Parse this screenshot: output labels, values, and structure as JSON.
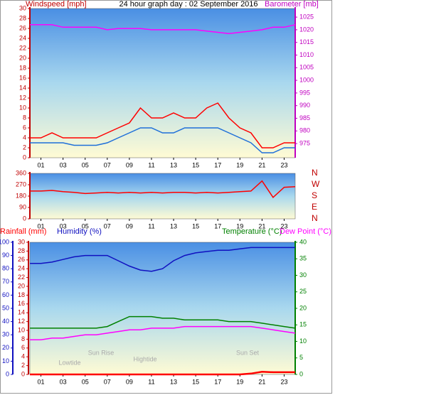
{
  "chart_data": [
    {
      "type": "line",
      "title": "24 hour graph day : 02 September 2016",
      "y_label": "Windspeed [mph]",
      "y2_label": "Barometer [mb]",
      "x": [
        0,
        1,
        2,
        3,
        4,
        5,
        6,
        7,
        8,
        9,
        10,
        11,
        12,
        13,
        14,
        15,
        16,
        17,
        18,
        19,
        20,
        21,
        22,
        23,
        24
      ],
      "xlim": [
        0,
        24
      ],
      "xticks": [
        {
          "value": 1,
          "label": "01"
        },
        {
          "value": 3,
          "label": "03"
        },
        {
          "value": 5,
          "label": "05"
        },
        {
          "value": 7,
          "label": "07"
        },
        {
          "value": 9,
          "label": "09"
        },
        {
          "value": 11,
          "label": "11"
        },
        {
          "value": 13,
          "label": "13"
        },
        {
          "value": 15,
          "label": "15"
        },
        {
          "value": 17,
          "label": "17"
        },
        {
          "value": 19,
          "label": "19"
        },
        {
          "value": 21,
          "label": "21"
        },
        {
          "value": 23,
          "label": "23"
        }
      ],
      "ylim": [
        0,
        30
      ],
      "yticks": [
        0,
        2,
        4,
        6,
        8,
        10,
        12,
        14,
        16,
        18,
        20,
        22,
        24,
        26,
        28,
        30
      ],
      "y2lim": [
        969.4,
        1028.4
      ],
      "y2ticks": [
        975,
        980,
        985,
        990,
        995,
        1000,
        1005,
        1010,
        1015,
        1020,
        1025
      ],
      "series": [
        {
          "color": "#ff0000",
          "values": [
            4,
            4,
            5,
            4,
            4,
            4,
            4,
            5,
            6,
            7,
            10,
            8,
            8,
            9,
            8,
            8,
            10,
            11,
            8,
            6,
            5,
            2,
            2,
            3,
            3
          ]
        },
        {
          "color": "#1e6fd9",
          "values": [
            3,
            3,
            3,
            3,
            2.5,
            2.5,
            2.5,
            3,
            4,
            5,
            6,
            6,
            5,
            5,
            6,
            6,
            6,
            6,
            5,
            4,
            3,
            1,
            1,
            2,
            2
          ]
        },
        {
          "color": "#ff00ff",
          "axis": "y2",
          "values": [
            1022,
            1022,
            1022,
            1021,
            1021,
            1021,
            1021,
            1020,
            1020.5,
            1020.5,
            1020.5,
            1020,
            1020,
            1020,
            1020,
            1020,
            1019.5,
            1019,
            1018.5,
            1019,
            1019.5,
            1020,
            1021,
            1021,
            1022
          ]
        }
      ]
    },
    {
      "type": "line",
      "x": [
        0,
        1,
        2,
        3,
        4,
        5,
        6,
        7,
        8,
        9,
        10,
        11,
        12,
        13,
        14,
        15,
        16,
        17,
        18,
        19,
        20,
        21,
        22,
        23,
        24
      ],
      "xlim": [
        0,
        24
      ],
      "xticks": [
        {
          "value": 1,
          "label": "01"
        },
        {
          "value": 3,
          "label": "03"
        },
        {
          "value": 5,
          "label": "05"
        },
        {
          "value": 7,
          "label": "07"
        },
        {
          "value": 9,
          "label": "09"
        },
        {
          "value": 11,
          "label": "11"
        },
        {
          "value": 13,
          "label": "13"
        },
        {
          "value": 15,
          "label": "15"
        },
        {
          "value": 17,
          "label": "17"
        },
        {
          "value": 19,
          "label": "19"
        },
        {
          "value": 21,
          "label": "21"
        },
        {
          "value": 23,
          "label": "23"
        }
      ],
      "ylim": [
        0,
        360
      ],
      "yticks": [
        0,
        90,
        180,
        270,
        360
      ],
      "y2lim": [
        0,
        360
      ],
      "y2ticks": [
        {
          "value": 360,
          "label": "N"
        },
        {
          "value": 270,
          "label": "W"
        },
        {
          "value": 180,
          "label": "S"
        },
        {
          "value": 90,
          "label": "E"
        },
        {
          "value": 0,
          "label": "N"
        }
      ],
      "series": [
        {
          "color": "#ff0000",
          "values": [
            220,
            220,
            225,
            215,
            210,
            200,
            205,
            210,
            205,
            210,
            205,
            210,
            205,
            210,
            210,
            205,
            210,
            205,
            210,
            215,
            220,
            300,
            170,
            250,
            255
          ]
        }
      ]
    },
    {
      "type": "line",
      "x": [
        0,
        1,
        2,
        3,
        4,
        5,
        6,
        7,
        8,
        9,
        10,
        11,
        12,
        13,
        14,
        15,
        16,
        17,
        18,
        19,
        20,
        21,
        22,
        23,
        24
      ],
      "xlim": [
        0,
        24
      ],
      "xticks": [
        {
          "value": 1,
          "label": "01"
        },
        {
          "value": 3,
          "label": "03"
        },
        {
          "value": 5,
          "label": "05"
        },
        {
          "value": 7,
          "label": "07"
        },
        {
          "value": 9,
          "label": "09"
        },
        {
          "value": 11,
          "label": "11"
        },
        {
          "value": 13,
          "label": "13"
        },
        {
          "value": 15,
          "label": "15"
        },
        {
          "value": 17,
          "label": "17"
        },
        {
          "value": 19,
          "label": "19"
        },
        {
          "value": 21,
          "label": "21"
        },
        {
          "value": 23,
          "label": "23"
        }
      ],
      "ylim": [
        0,
        100
      ],
      "yticks": [
        0,
        10,
        20,
        30,
        40,
        50,
        60,
        70,
        80,
        90,
        100
      ],
      "y2lim": [
        0,
        40
      ],
      "y2ticks": [
        0,
        5,
        10,
        15,
        20,
        25,
        30,
        35,
        40
      ],
      "y3lim": [
        0,
        30
      ],
      "y3ticks": [
        0,
        2,
        4,
        6,
        8,
        10,
        12,
        14,
        16,
        18,
        20,
        22,
        24,
        26,
        28,
        30
      ],
      "annotations": [
        "Lowtide",
        "Sun Rise",
        "Hightide",
        "Sun Set"
      ],
      "series": [
        {
          "name": "Rainfall (mm)",
          "color": "#ff0000",
          "axis": "y3",
          "values": [
            0,
            0,
            0,
            0,
            0,
            0,
            0,
            0,
            0,
            0,
            0,
            0,
            0,
            0,
            0,
            0,
            0,
            0,
            0,
            0,
            0.2,
            0.6,
            0.5,
            0.5,
            0.5
          ]
        },
        {
          "name": "Humidity (%)",
          "color": "#1010c0",
          "values": [
            84,
            84,
            85,
            87,
            89,
            90,
            90,
            90,
            86,
            82,
            79,
            78,
            80,
            86,
            90,
            92,
            93,
            94,
            94,
            95,
            96,
            96,
            96,
            96,
            96
          ]
        },
        {
          "name": "Temperature (°C)",
          "color": "#008000",
          "axis": "y2",
          "values": [
            14,
            14,
            14,
            14,
            14,
            14,
            14,
            14.5,
            16,
            17.5,
            17.5,
            17.5,
            17,
            17,
            16.5,
            16.5,
            16.5,
            16.5,
            16,
            16,
            16,
            15.5,
            15,
            14.5,
            14
          ]
        },
        {
          "name": "Dew Point (°C)",
          "color": "#ff00ff",
          "axis": "y2",
          "values": [
            10.5,
            10.5,
            11,
            11,
            11.5,
            12,
            12,
            12.5,
            13,
            13.5,
            13.5,
            14,
            14,
            14,
            14.5,
            14.5,
            14.5,
            14.5,
            14.5,
            14.5,
            14.5,
            14,
            13.5,
            13,
            12.5
          ]
        }
      ]
    }
  ]
}
